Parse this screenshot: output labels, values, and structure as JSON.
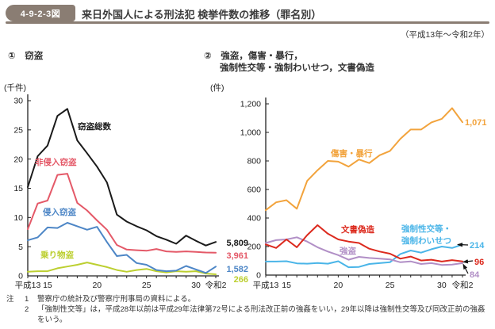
{
  "header": {
    "figure_badge": "4-9-2-3図",
    "title": "来日外国人による刑法犯 検挙件数の推移（罪名別）",
    "period_note": "（平成13年～令和2年）"
  },
  "panels": [
    {
      "heading_lines": [
        "①　窃盗",
        ""
      ]
    },
    {
      "heading_lines": [
        "②　強盗，傷害・暴行，",
        "強制性交等・強制わいせつ，文書偽造"
      ]
    }
  ],
  "chart_data": [
    {
      "type": "line",
      "title": "窃盗",
      "ylabel": "(千件)",
      "ylim": [
        0,
        30
      ],
      "ytick_labels": [
        "0",
        "5",
        "10",
        "15",
        "20",
        "25",
        "30"
      ],
      "grid": false,
      "legend_position": "inline-labels",
      "categories": [
        "平成13",
        "14",
        "15",
        "16",
        "17",
        "18",
        "19",
        "20",
        "21",
        "22",
        "23",
        "24",
        "25",
        "26",
        "27",
        "28",
        "29",
        "30",
        "令和元",
        "令和2"
      ],
      "x_axis_tick_labels": [
        {
          "i": 0,
          "t": "平成13"
        },
        {
          "i": 2,
          "t": "15"
        },
        {
          "i": 7,
          "t": "20"
        },
        {
          "i": 12,
          "t": "25"
        },
        {
          "i": 17,
          "t": "30"
        },
        {
          "i": 19,
          "t": "令和2"
        }
      ],
      "series": [
        {
          "name": "窃盗総数",
          "color": "#1a1a1a",
          "end_label": "5,809",
          "values": [
            15.2,
            20.5,
            22.3,
            27.4,
            28.6,
            23.2,
            21.0,
            18.7,
            16.0,
            10.5,
            9.3,
            8.5,
            7.8,
            6.8,
            6.2,
            5.5,
            6.9,
            6.0,
            5.2,
            5.809
          ]
        },
        {
          "name": "非侵入窃盗",
          "color": "#e45968",
          "end_label": "3,961",
          "values": [
            8.0,
            12.4,
            12.9,
            17.3,
            17.5,
            12.5,
            11.2,
            9.5,
            7.9,
            5.3,
            4.5,
            4.4,
            4.3,
            4.6,
            4.2,
            4.1,
            4.2,
            4.1,
            4.0,
            3.961
          ]
        },
        {
          "name": "侵入窃盗",
          "color": "#4d86c6",
          "end_label": "1,582",
          "values": [
            6.1,
            6.6,
            8.3,
            8.2,
            9.1,
            8.5,
            7.9,
            8.4,
            5.8,
            3.4,
            3.6,
            2.2,
            1.9,
            1.0,
            0.8,
            0.9,
            1.7,
            1.1,
            0.5,
            1.582
          ]
        },
        {
          "name": "乗り物盗",
          "color": "#bccf30",
          "end_label": "266",
          "values": [
            0.7,
            0.8,
            0.8,
            1.3,
            1.6,
            1.9,
            2.3,
            1.9,
            1.5,
            1.0,
            0.7,
            1.0,
            1.2,
            0.8,
            0.6,
            0.8,
            0.7,
            0.8,
            0.4,
            0.266
          ]
        }
      ]
    },
    {
      "type": "line",
      "title": "強盗，傷害・暴行，強制性交等・強制わいせつ，文書偽造",
      "ylabel": "(件)",
      "ylim": [
        0,
        1200
      ],
      "ytick_labels": [
        "0",
        "200",
        "400",
        "600",
        "800",
        "1,000",
        "1,200"
      ],
      "grid": false,
      "legend_position": "inline-labels",
      "categories": [
        "平成13",
        "14",
        "15",
        "16",
        "17",
        "18",
        "19",
        "20",
        "21",
        "22",
        "23",
        "24",
        "25",
        "26",
        "27",
        "28",
        "29",
        "30",
        "令和元",
        "令和2"
      ],
      "x_axis_tick_labels": [
        {
          "i": 0,
          "t": "平成13"
        },
        {
          "i": 2,
          "t": "15"
        },
        {
          "i": 7,
          "t": "20"
        },
        {
          "i": 12,
          "t": "25"
        },
        {
          "i": 17,
          "t": "30"
        },
        {
          "i": 19,
          "t": "令和2"
        }
      ],
      "series": [
        {
          "name": "傷害・暴行",
          "color": "#f2a33c",
          "end_label": "1,071",
          "values": [
            455,
            510,
            525,
            465,
            660,
            735,
            800,
            795,
            760,
            810,
            785,
            840,
            870,
            955,
            1020,
            1020,
            1070,
            1095,
            1170,
            1071
          ]
        },
        {
          "name": "文書偽造",
          "color": "#dc2a1e",
          "end_label": "96",
          "values": [
            215,
            190,
            250,
            195,
            280,
            350,
            290,
            250,
            235,
            225,
            185,
            165,
            150,
            115,
            130,
            102,
            108,
            95,
            105,
            96
          ]
        },
        {
          "name": "強盗",
          "color": "#b18fc6",
          "end_label": "84",
          "values": [
            225,
            245,
            250,
            265,
            235,
            195,
            165,
            140,
            108,
            128,
            120,
            115,
            110,
            90,
            96,
            78,
            84,
            71,
            74,
            84
          ]
        },
        {
          "name": "強制性交等・強制わいせつ",
          "color": "#4ab5e8",
          "end_label": "214",
          "label_lines": [
            "強制性交等・",
            "強制わいせつ"
          ],
          "values": [
            95,
            95,
            97,
            82,
            80,
            85,
            80,
            97,
            55,
            57,
            78,
            84,
            90,
            148,
            172,
            157,
            181,
            200,
            190,
            214
          ]
        }
      ]
    }
  ],
  "notes": {
    "prefix": "注",
    "items": [
      {
        "num": "1",
        "text": "警察庁の統計及び警察庁刑事局の資料による。"
      },
      {
        "num": "2",
        "text": "「強制性交等」は，平成28年以前は平成29年法律第72号による刑法改正前の強姦をいい，29年以降は強制性交等及び同改正前の強姦をいう。"
      }
    ]
  }
}
